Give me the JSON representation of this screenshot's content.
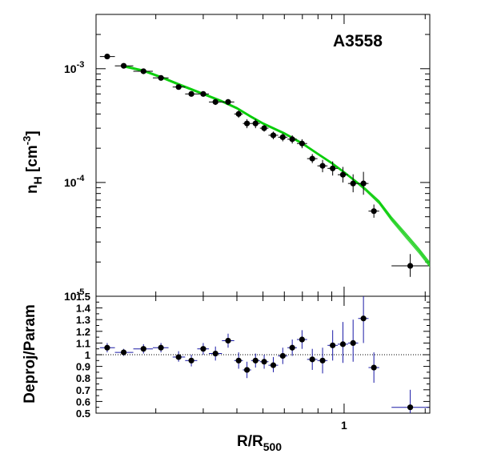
{
  "chart_data": [
    {
      "type": "scatter",
      "panel": "top",
      "annotation": "A3558",
      "ylabel_main": "n",
      "ylabel_sub": "H",
      "ylabel_unit_pre": " [cm",
      "ylabel_unit_sup": "-3",
      "ylabel_unit_post": "]",
      "yscale": "log",
      "xscale": "log",
      "ylim": [
        1e-05,
        0.003
      ],
      "y_tick_labels": [
        {
          "value": 0.001,
          "base": "10",
          "exp": "-3"
        },
        {
          "value": 0.0001,
          "base": "10",
          "exp": "-4"
        },
        {
          "value": 1e-05,
          "base": "10",
          "exp": "-5"
        }
      ],
      "series": [
        {
          "style": "points with error bars",
          "color": "#000000",
          "points": [
            {
              "x": 0.132,
              "xlo": 0.124,
              "xhi": 0.141,
              "y": 0.00128,
              "ylo": 0.00123,
              "yhi": 0.00134
            },
            {
              "x": 0.152,
              "xlo": 0.141,
              "xhi": 0.165,
              "y": 0.00106,
              "ylo": 0.00102,
              "yhi": 0.0011
            },
            {
              "x": 0.18,
              "xlo": 0.165,
              "xhi": 0.195,
              "y": 0.00095,
              "ylo": 0.00091,
              "yhi": 0.00099
            },
            {
              "x": 0.209,
              "xlo": 0.195,
              "xhi": 0.223,
              "y": 0.00083,
              "ylo": 0.00079,
              "yhi": 0.00087
            },
            {
              "x": 0.243,
              "xlo": 0.231,
              "xhi": 0.257,
              "y": 0.00069,
              "ylo": 0.00066,
              "yhi": 0.00072
            },
            {
              "x": 0.271,
              "xlo": 0.257,
              "xhi": 0.285,
              "y": 0.0006,
              "ylo": 0.00057,
              "yhi": 0.00063
            },
            {
              "x": 0.3,
              "xlo": 0.285,
              "xhi": 0.315,
              "y": 0.0006,
              "ylo": 0.00057,
              "yhi": 0.00063
            },
            {
              "x": 0.333,
              "xlo": 0.315,
              "xhi": 0.352,
              "y": 0.00051,
              "ylo": 0.00048,
              "yhi": 0.00054
            },
            {
              "x": 0.371,
              "xlo": 0.352,
              "xhi": 0.391,
              "y": 0.00051,
              "ylo": 0.00048,
              "yhi": 0.00054
            },
            {
              "x": 0.406,
              "xlo": 0.391,
              "xhi": 0.421,
              "y": 0.0004,
              "ylo": 0.00037,
              "yhi": 0.00043
            },
            {
              "x": 0.436,
              "xlo": 0.421,
              "xhi": 0.452,
              "y": 0.00033,
              "ylo": 0.0003,
              "yhi": 0.00036
            },
            {
              "x": 0.469,
              "xlo": 0.452,
              "xhi": 0.487,
              "y": 0.00033,
              "ylo": 0.0003,
              "yhi": 0.00036
            },
            {
              "x": 0.505,
              "xlo": 0.487,
              "xhi": 0.524,
              "y": 0.0003,
              "ylo": 0.00028,
              "yhi": 0.00032
            },
            {
              "x": 0.546,
              "xlo": 0.524,
              "xhi": 0.569,
              "y": 0.00026,
              "ylo": 0.00024,
              "yhi": 0.00028
            },
            {
              "x": 0.592,
              "xlo": 0.569,
              "xhi": 0.616,
              "y": 0.00025,
              "ylo": 0.00023,
              "yhi": 0.00027
            },
            {
              "x": 0.642,
              "xlo": 0.616,
              "xhi": 0.668,
              "y": 0.00024,
              "ylo": 0.00022,
              "yhi": 0.00026
            },
            {
              "x": 0.698,
              "xlo": 0.668,
              "xhi": 0.729,
              "y": 0.00022,
              "ylo": 0.0002,
              "yhi": 0.00024
            },
            {
              "x": 0.762,
              "xlo": 0.729,
              "xhi": 0.796,
              "y": 0.000162,
              "ylo": 0.000148,
              "yhi": 0.000178
            },
            {
              "x": 0.832,
              "xlo": 0.796,
              "xhi": 0.868,
              "y": 0.00014,
              "ylo": 0.000123,
              "yhi": 0.000158
            },
            {
              "x": 0.907,
              "xlo": 0.868,
              "xhi": 0.947,
              "y": 0.000133,
              "ylo": 0.000115,
              "yhi": 0.000153
            },
            {
              "x": 0.99,
              "xlo": 0.947,
              "xhi": 1.034,
              "y": 0.000117,
              "ylo": 0.0001,
              "yhi": 0.000137
            },
            {
              "x": 1.08,
              "xlo": 1.034,
              "xhi": 1.128,
              "y": 9.8e-05,
              "ylo": 8.2e-05,
              "yhi": 0.000118
            },
            {
              "x": 1.18,
              "xlo": 1.128,
              "xhi": 1.232,
              "y": 9.8e-05,
              "ylo": 7.8e-05,
              "yhi": 0.000124
            },
            {
              "x": 1.29,
              "xlo": 1.232,
              "xhi": 1.35,
              "y": 5.6e-05,
              "ylo": 4.9e-05,
              "yhi": 6.4e-05
            },
            {
              "x": 1.76,
              "xlo": 1.5,
              "xhi": 2.06,
              "y": 1.85e-05,
              "ylo": 1.48e-05,
              "yhi": 2.35e-05
            }
          ]
        },
        {
          "style": "fit band",
          "color": "#00cc00",
          "x": [
            0.15,
            0.18,
            0.21,
            0.25,
            0.3,
            0.35,
            0.4,
            0.45,
            0.5,
            0.6,
            0.7,
            0.8,
            0.9,
            1.0,
            1.1,
            1.2,
            1.35,
            1.5,
            1.7,
            1.9,
            2.08
          ],
          "y": [
            0.00106,
            0.00096,
            0.00084,
            0.00071,
            0.0006,
            0.00052,
            0.00045,
            0.00038,
            0.00033,
            0.00027,
            0.00022,
            0.000178,
            0.000148,
            0.000123,
            0.000103,
            8.7e-05,
            6.7e-05,
            4.8e-05,
            3.4e-05,
            2.5e-05,
            1.9e-05
          ],
          "width": [
            0.03,
            0.03,
            0.03,
            0.03,
            0.03,
            0.03,
            0.03,
            0.03,
            0.03,
            0.03,
            0.03,
            0.03,
            0.03,
            0.03,
            0.03,
            0.04,
            0.05,
            0.06,
            0.07,
            0.07,
            0.07
          ]
        }
      ]
    },
    {
      "type": "scatter",
      "panel": "bottom",
      "ylabel": "Deproj/Param",
      "xlabel_main": "R/R",
      "xlabel_sub": "500",
      "xscale": "log",
      "xlim": [
        0.12,
        2.08
      ],
      "ylim": [
        0.5,
        1.5
      ],
      "x_tick_labels": [
        {
          "value": 1,
          "label": "1"
        }
      ],
      "y_tick_labels": [
        {
          "value": 0.5,
          "label": "0.5"
        },
        {
          "value": 0.6,
          "label": "0.6"
        },
        {
          "value": 0.7,
          "label": "0.7"
        },
        {
          "value": 0.8,
          "label": "0.8"
        },
        {
          "value": 0.9,
          "label": "0.9"
        },
        {
          "value": 1.0,
          "label": "1"
        },
        {
          "value": 1.1,
          "label": "1.1"
        },
        {
          "value": 1.2,
          "label": "1.2"
        },
        {
          "value": 1.3,
          "label": "1.3"
        },
        {
          "value": 1.4,
          "label": "1.4"
        },
        {
          "value": 1.5,
          "label": "1.5"
        }
      ],
      "reference_line": 1.0,
      "series": [
        {
          "style": "points with error bars",
          "color": "#000000",
          "error_color": "#1a1aa6",
          "points": [
            {
              "x": 0.132,
              "xlo": 0.124,
              "xhi": 0.141,
              "y": 1.06,
              "ylo": 1.02,
              "yhi": 1.1
            },
            {
              "x": 0.152,
              "xlo": 0.141,
              "xhi": 0.165,
              "y": 1.02,
              "ylo": 0.99,
              "yhi": 1.05
            },
            {
              "x": 0.18,
              "xlo": 0.165,
              "xhi": 0.195,
              "y": 1.05,
              "ylo": 1.01,
              "yhi": 1.09
            },
            {
              "x": 0.209,
              "xlo": 0.195,
              "xhi": 0.223,
              "y": 1.06,
              "ylo": 1.02,
              "yhi": 1.1
            },
            {
              "x": 0.243,
              "xlo": 0.231,
              "xhi": 0.257,
              "y": 0.98,
              "ylo": 0.94,
              "yhi": 1.03
            },
            {
              "x": 0.271,
              "xlo": 0.257,
              "xhi": 0.285,
              "y": 0.95,
              "ylo": 0.9,
              "yhi": 1.0
            },
            {
              "x": 0.3,
              "xlo": 0.285,
              "xhi": 0.315,
              "y": 1.05,
              "ylo": 1.0,
              "yhi": 1.1
            },
            {
              "x": 0.333,
              "xlo": 0.315,
              "xhi": 0.352,
              "y": 1.01,
              "ylo": 0.95,
              "yhi": 1.07
            },
            {
              "x": 0.371,
              "xlo": 0.352,
              "xhi": 0.391,
              "y": 1.12,
              "ylo": 1.06,
              "yhi": 1.18
            },
            {
              "x": 0.406,
              "xlo": 0.391,
              "xhi": 0.421,
              "y": 0.95,
              "ylo": 0.88,
              "yhi": 1.02
            },
            {
              "x": 0.436,
              "xlo": 0.421,
              "xhi": 0.452,
              "y": 0.87,
              "ylo": 0.8,
              "yhi": 0.94
            },
            {
              "x": 0.469,
              "xlo": 0.452,
              "xhi": 0.487,
              "y": 0.95,
              "ylo": 0.89,
              "yhi": 1.01
            },
            {
              "x": 0.505,
              "xlo": 0.487,
              "xhi": 0.524,
              "y": 0.94,
              "ylo": 0.88,
              "yhi": 1.0
            },
            {
              "x": 0.546,
              "xlo": 0.524,
              "xhi": 0.569,
              "y": 0.91,
              "ylo": 0.85,
              "yhi": 0.98
            },
            {
              "x": 0.592,
              "xlo": 0.569,
              "xhi": 0.616,
              "y": 0.99,
              "ylo": 0.92,
              "yhi": 1.06
            },
            {
              "x": 0.642,
              "xlo": 0.616,
              "xhi": 0.668,
              "y": 1.06,
              "ylo": 0.99,
              "yhi": 1.13
            },
            {
              "x": 0.698,
              "xlo": 0.668,
              "xhi": 0.729,
              "y": 1.13,
              "ylo": 1.05,
              "yhi": 1.21
            },
            {
              "x": 0.762,
              "xlo": 0.729,
              "xhi": 0.796,
              "y": 0.96,
              "ylo": 0.87,
              "yhi": 1.05
            },
            {
              "x": 0.832,
              "xlo": 0.796,
              "xhi": 0.868,
              "y": 0.95,
              "ylo": 0.84,
              "yhi": 1.06
            },
            {
              "x": 0.907,
              "xlo": 0.868,
              "xhi": 0.947,
              "y": 1.08,
              "ylo": 0.95,
              "yhi": 1.21
            },
            {
              "x": 0.99,
              "xlo": 0.947,
              "xhi": 1.034,
              "y": 1.09,
              "ylo": 0.93,
              "yhi": 1.28
            },
            {
              "x": 1.08,
              "xlo": 1.034,
              "xhi": 1.128,
              "y": 1.1,
              "ylo": 0.94,
              "yhi": 1.3
            },
            {
              "x": 1.18,
              "xlo": 1.128,
              "xhi": 1.232,
              "y": 1.31,
              "ylo": 1.1,
              "yhi": 1.5
            },
            {
              "x": 1.29,
              "xlo": 1.232,
              "xhi": 1.35,
              "y": 0.89,
              "ylo": 0.76,
              "yhi": 1.02
            },
            {
              "x": 1.76,
              "xlo": 1.5,
              "xhi": 2.06,
              "y": 0.55,
              "ylo": 0.46,
              "yhi": 0.7
            }
          ]
        }
      ]
    }
  ]
}
